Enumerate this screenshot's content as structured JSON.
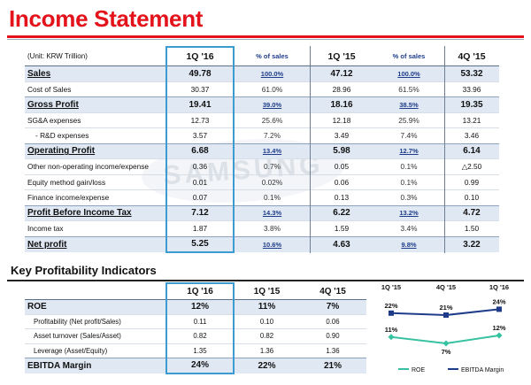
{
  "title": "Income Statement",
  "watermark": "SAMSUNG",
  "income_statement": {
    "unit": "(Unit: KRW Trillion)",
    "periods": [
      "1Q '16",
      "1Q '15",
      "4Q '15"
    ],
    "pct_label": "% of sales",
    "rows": [
      {
        "label": "Sales",
        "type": "major",
        "v1": "49.78",
        "p1": "100.0%",
        "v2": "47.12",
        "p2": "100.0%",
        "v3": "53.32"
      },
      {
        "label": "Cost of Sales",
        "type": "minor",
        "v1": "30.37",
        "p1": "61.0%",
        "v2": "28.96",
        "p2": "61.5%",
        "v3": "33.96"
      },
      {
        "label": "Gross Profit",
        "type": "major",
        "v1": "19.41",
        "p1": "39.0%",
        "v2": "18.16",
        "p2": "38.5%",
        "v3": "19.35"
      },
      {
        "label": "SG&A expenses",
        "type": "minor",
        "v1": "12.73",
        "p1": "25.6%",
        "v2": "12.18",
        "p2": "25.9%",
        "v3": "13.21"
      },
      {
        "label": "- R&D expenses",
        "type": "minor",
        "indent": true,
        "v1": "3.57",
        "p1": "7.2%",
        "v2": "3.49",
        "p2": "7.4%",
        "v3": "3.46"
      },
      {
        "label": "Operating Profit",
        "type": "major",
        "v1": "6.68",
        "p1": "13.4%",
        "v2": "5.98",
        "p2": "12.7%",
        "v3": "6.14"
      },
      {
        "label": "Other non-operating income/expense",
        "type": "minor",
        "v1": "0.36",
        "p1": "0.7%",
        "v2": "0.05",
        "p2": "0.1%",
        "v3": "△2.50"
      },
      {
        "label": "Equity method gain/loss",
        "type": "minor",
        "v1": "0.01",
        "p1": "0.02%",
        "v2": "0.06",
        "p2": "0.1%",
        "v3": "0.99"
      },
      {
        "label": "Finance income/expense",
        "type": "minor",
        "v1": "0.07",
        "p1": "0.1%",
        "v2": "0.13",
        "p2": "0.3%",
        "v3": "0.10"
      },
      {
        "label": "Profit Before Income Tax",
        "type": "major",
        "v1": "7.12",
        "p1": "14.3%",
        "v2": "6.22",
        "p2": "13.2%",
        "v3": "4.72"
      },
      {
        "label": "Income tax",
        "type": "minor",
        "v1": "1.87",
        "p1": "3.8%",
        "v2": "1.59",
        "p2": "3.4%",
        "v3": "1.50"
      },
      {
        "label": "Net profit",
        "type": "major",
        "v1": "5.25",
        "p1": "10.6%",
        "v2": "4.63",
        "p2": "9.8%",
        "v3": "3.22"
      }
    ]
  },
  "kpi": {
    "title": "Key Profitability Indicators",
    "periods": [
      "1Q '16",
      "1Q '15",
      "4Q '15"
    ],
    "rows": [
      {
        "label": "ROE",
        "type": "major",
        "v1": "12%",
        "v2": "11%",
        "v3": "7%"
      },
      {
        "label": "Profitability (Net profit/Sales)",
        "type": "minor",
        "v1": "0.11",
        "v2": "0.10",
        "v3": "0.06"
      },
      {
        "label": "Asset turnover (Sales/Asset)",
        "type": "minor",
        "v1": "0.82",
        "v2": "0.82",
        "v3": "0.90"
      },
      {
        "label": "Leverage (Asset/Equity)",
        "type": "minor",
        "v1": "1.35",
        "v2": "1.36",
        "v3": "1.36"
      },
      {
        "label": "EBITDA Margin",
        "type": "major",
        "v1": "24%",
        "v2": "22%",
        "v3": "21%"
      }
    ]
  },
  "chart_data": {
    "type": "line",
    "categories": [
      "1Q '15",
      "4Q '15",
      "1Q '16"
    ],
    "series": [
      {
        "name": "ROE",
        "values": [
          11,
          7,
          12
        ],
        "labels": [
          "11%",
          "7%",
          "12%"
        ],
        "color": "#36c2a0"
      },
      {
        "name": "EBITDA Margin",
        "values": [
          22,
          21,
          24
        ],
        "labels": [
          "22%",
          "21%",
          "24%"
        ],
        "color": "#1f3c8a"
      }
    ],
    "legend": "bottom"
  }
}
